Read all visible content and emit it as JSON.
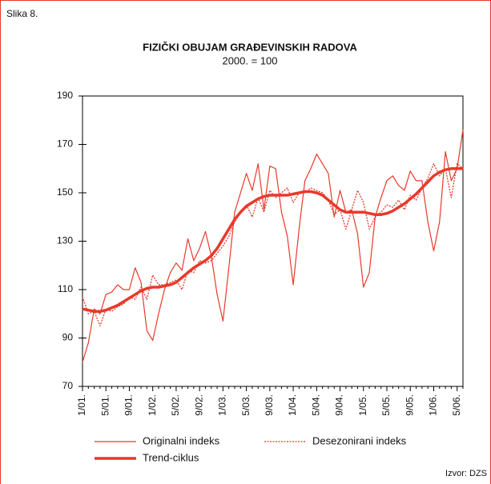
{
  "chart_data": {
    "type": "line",
    "label": "Slika 8.",
    "title": "FIZIČKI OBUJAM GRAĐEVINSKIH RADOVA",
    "subtitle": "2000. = 100",
    "source": "Izvor: DZS",
    "categories": [
      "1/01.",
      null,
      null,
      null,
      "5/01.",
      null,
      null,
      null,
      "9/01.",
      null,
      null,
      null,
      "1/02.",
      null,
      null,
      null,
      "5/02.",
      null,
      null,
      null,
      "9/02.",
      null,
      null,
      null,
      "1/03.",
      null,
      null,
      null,
      "5/03.",
      null,
      null,
      null,
      "9/03.",
      null,
      null,
      null,
      "1/04.",
      null,
      null,
      null,
      "5/04.",
      null,
      null,
      null,
      "9/04.",
      null,
      null,
      null,
      "1/05.",
      null,
      null,
      null,
      "5/05.",
      null,
      null,
      null,
      "9/05.",
      null,
      null,
      null,
      "1/06.",
      null,
      null,
      null,
      "5/06.",
      null
    ],
    "ylim": [
      70,
      190
    ],
    "yticks": [
      70,
      90,
      110,
      130,
      150,
      170,
      190
    ],
    "grid": false,
    "series": [
      {
        "name": "Originalni indeks",
        "color": "#e8392b",
        "linestyle": "solid",
        "values": [
          80,
          88,
          102,
          100,
          108,
          109,
          112,
          110,
          110,
          119,
          113,
          93,
          89,
          100,
          110,
          117,
          121,
          118,
          131,
          122,
          127,
          134,
          124,
          108,
          97,
          119,
          142,
          150,
          158,
          151,
          162,
          143,
          161,
          160,
          142,
          132,
          112,
          135,
          155,
          160,
          166,
          162,
          158,
          140,
          151,
          142,
          143,
          133,
          111,
          117,
          140,
          148,
          155,
          157,
          153,
          151,
          159,
          155,
          155,
          138,
          126,
          138,
          167,
          155,
          160,
          176
        ]
      },
      {
        "name": "Desezonirani indeks",
        "color": "#e8392b",
        "linestyle": "dotted",
        "values": [
          107,
          100,
          101,
          95,
          102,
          101,
          103,
          104,
          107,
          106,
          111,
          106,
          116,
          112,
          112,
          113,
          114,
          110,
          118,
          117,
          122,
          121,
          122,
          125,
          128,
          132,
          138,
          142,
          145,
          140,
          148,
          142,
          151,
          148,
          150,
          152,
          146,
          150,
          150,
          152,
          151,
          150,
          147,
          141,
          143,
          135,
          143,
          151,
          146,
          135,
          140,
          142,
          145,
          144,
          147,
          143,
          149,
          147,
          152,
          156,
          162,
          157,
          160,
          148,
          162,
          160
        ]
      },
      {
        "name": "Trend-ciklus",
        "color": "#e8392b",
        "linestyle": "thick",
        "values": [
          102,
          101.5,
          101,
          101,
          101.5,
          102.5,
          103.5,
          105,
          106.5,
          108,
          109.5,
          110.5,
          111,
          111,
          111.5,
          112,
          113,
          115,
          117,
          119,
          120.5,
          122,
          124,
          127,
          131,
          135,
          139,
          142,
          144.5,
          146,
          147.5,
          148.5,
          149,
          149,
          149,
          149,
          149.5,
          150,
          150.5,
          150.5,
          150,
          149,
          147,
          145,
          143,
          142,
          142,
          142,
          142,
          141.5,
          141,
          141,
          141.5,
          142.5,
          144,
          145.5,
          147.5,
          149.5,
          152,
          154.5,
          157,
          158.5,
          159.5,
          160,
          160,
          160
        ]
      }
    ]
  }
}
